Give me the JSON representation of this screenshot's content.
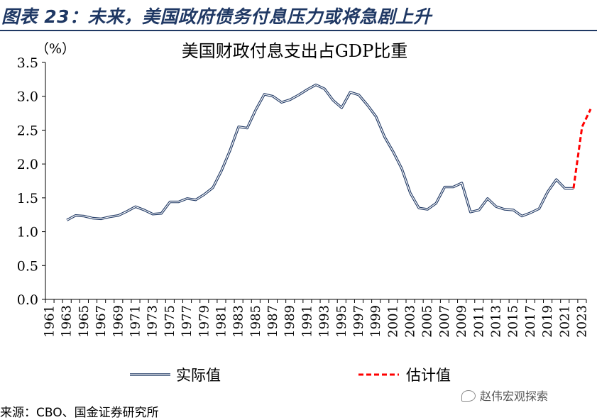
{
  "header": {
    "title": "图表 23：未来，美国政府债务付息压力或将急剧上升"
  },
  "footer": {
    "source": "来源：CBO、国金证券研究所",
    "watermark": "赵伟宏观探索"
  },
  "colors": {
    "actual": "#1f3864",
    "estimate": "#ff0000",
    "header": "#1f3864"
  },
  "chart_data": {
    "type": "line",
    "title": "美国财政付息支出占GDP比重",
    "unit_label": "（%）",
    "ylim": [
      0.0,
      3.5
    ],
    "yticks": [
      "0.0",
      "0.5",
      "1.0",
      "1.5",
      "2.0",
      "2.5",
      "3.0",
      "3.5"
    ],
    "xlim": [
      1961,
      2024
    ],
    "xticks": [
      "1961",
      "1963",
      "1965",
      "1967",
      "1969",
      "1971",
      "1973",
      "1975",
      "1977",
      "1979",
      "1981",
      "1983",
      "1985",
      "1987",
      "1989",
      "1991",
      "1993",
      "1995",
      "1997",
      "1999",
      "2001",
      "2003",
      "2005",
      "2007",
      "2009",
      "2011",
      "2013",
      "2015",
      "2017",
      "2019",
      "2021",
      "2023"
    ],
    "grid": false,
    "legend_position": "bottom",
    "series": [
      {
        "name": "实际值",
        "style": "solid",
        "x": [
          1963,
          1964,
          1965,
          1966,
          1967,
          1968,
          1969,
          1970,
          1971,
          1972,
          1973,
          1974,
          1975,
          1976,
          1977,
          1978,
          1979,
          1980,
          1981,
          1982,
          1983,
          1984,
          1985,
          1986,
          1987,
          1988,
          1989,
          1990,
          1991,
          1992,
          1993,
          1994,
          1995,
          1996,
          1997,
          1998,
          1999,
          2000,
          2001,
          2002,
          2003,
          2004,
          2005,
          2006,
          2007,
          2008,
          2009,
          2010,
          2011,
          2012,
          2013,
          2014,
          2015,
          2016,
          2017,
          2018,
          2019,
          2020,
          2021,
          2022
        ],
        "values": [
          1.17,
          1.24,
          1.23,
          1.2,
          1.19,
          1.22,
          1.24,
          1.3,
          1.37,
          1.32,
          1.26,
          1.27,
          1.44,
          1.44,
          1.49,
          1.47,
          1.55,
          1.65,
          1.9,
          2.2,
          2.55,
          2.53,
          2.8,
          3.03,
          3.0,
          2.91,
          2.95,
          3.02,
          3.1,
          3.17,
          3.11,
          2.94,
          2.83,
          3.06,
          3.02,
          2.87,
          2.7,
          2.4,
          2.18,
          1.93,
          1.57,
          1.35,
          1.33,
          1.42,
          1.66,
          1.66,
          1.72,
          1.29,
          1.32,
          1.49,
          1.37,
          1.33,
          1.32,
          1.23,
          1.28,
          1.34,
          1.59,
          1.77,
          1.64,
          1.64
        ]
      },
      {
        "name": "估计值",
        "style": "dashed",
        "x": [
          2022,
          2023,
          2024
        ],
        "values": [
          1.64,
          2.55,
          2.81
        ]
      }
    ]
  }
}
